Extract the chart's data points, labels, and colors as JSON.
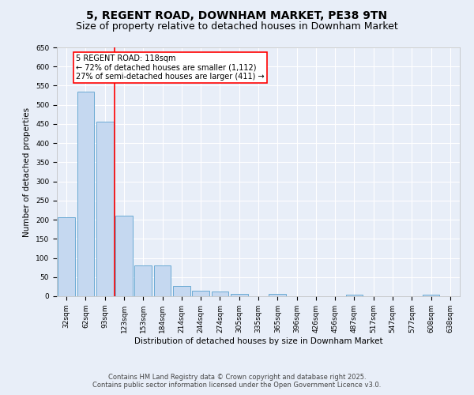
{
  "title": "5, REGENT ROAD, DOWNHAM MARKET, PE38 9TN",
  "subtitle": "Size of property relative to detached houses in Downham Market",
  "xlabel": "Distribution of detached houses by size in Downham Market",
  "ylabel": "Number of detached properties",
  "categories": [
    "32sqm",
    "62sqm",
    "93sqm",
    "123sqm",
    "153sqm",
    "184sqm",
    "214sqm",
    "244sqm",
    "274sqm",
    "305sqm",
    "335sqm",
    "365sqm",
    "396sqm",
    "426sqm",
    "456sqm",
    "487sqm",
    "517sqm",
    "547sqm",
    "577sqm",
    "608sqm",
    "638sqm"
  ],
  "values": [
    207,
    535,
    457,
    211,
    81,
    81,
    26,
    14,
    12,
    7,
    0,
    7,
    0,
    0,
    0,
    4,
    0,
    0,
    0,
    4,
    0
  ],
  "bar_color": "#c5d8f0",
  "bar_edge_color": "#6aaad4",
  "background_color": "#e8eef8",
  "grid_color": "#ffffff",
  "vline_color": "red",
  "annotation_text": "5 REGENT ROAD: 118sqm\n← 72% of detached houses are smaller (1,112)\n27% of semi-detached houses are larger (411) →",
  "annotation_box_facecolor": "white",
  "annotation_box_edgecolor": "red",
  "ylim": [
    0,
    650
  ],
  "yticks": [
    0,
    50,
    100,
    150,
    200,
    250,
    300,
    350,
    400,
    450,
    500,
    550,
    600,
    650
  ],
  "footer_line1": "Contains HM Land Registry data © Crown copyright and database right 2025.",
  "footer_line2": "Contains public sector information licensed under the Open Government Licence v3.0.",
  "title_fontsize": 10,
  "subtitle_fontsize": 9,
  "axis_label_fontsize": 7.5,
  "tick_fontsize": 6.5,
  "annotation_fontsize": 7,
  "footer_fontsize": 6
}
